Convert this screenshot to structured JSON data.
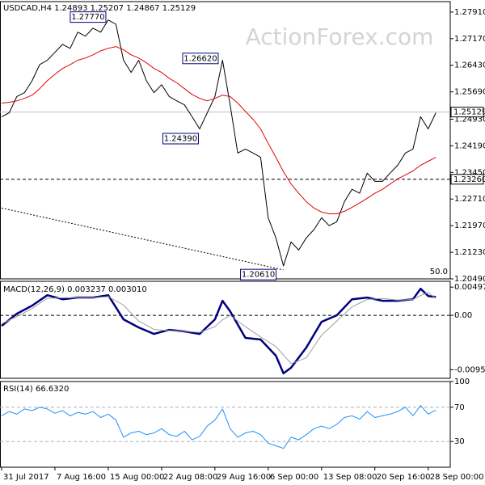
{
  "chart_data": [
    {
      "type": "line",
      "title": "USDCAD,H4 1.24893 1.25207 1.24867 1.25129",
      "watermark": "ActionForex.com",
      "corner_label": "50.0",
      "xlim": [
        0,
        59
      ],
      "ylim": [
        1.2049,
        1.282
      ],
      "yticks": [
        {
          "value": 1.2791,
          "label": "1.27910"
        },
        {
          "value": 1.2717,
          "label": "1.27170"
        },
        {
          "value": 1.2643,
          "label": "1.26430"
        },
        {
          "value": 1.2569,
          "label": "1.25690"
        },
        {
          "value": 1.2493,
          "label": "1.24930"
        },
        {
          "value": 1.2419,
          "label": "1.24190"
        },
        {
          "value": 1.2345,
          "label": "1.23450"
        },
        {
          "value": 1.2271,
          "label": "1.22710"
        },
        {
          "value": 1.2197,
          "label": "1.21970"
        },
        {
          "value": 1.2123,
          "label": "1.21230"
        },
        {
          "value": 1.2049,
          "label": "1.20490"
        }
      ],
      "x": [
        0,
        1,
        2,
        3,
        4,
        5,
        6,
        7,
        8,
        9,
        10,
        11,
        12,
        13,
        14,
        15,
        16,
        17,
        18,
        19,
        20,
        21,
        22,
        23,
        24,
        25,
        26,
        27,
        28,
        29,
        30,
        31,
        32,
        33,
        34,
        35,
        36,
        37,
        38,
        39,
        40,
        41,
        42,
        43,
        44,
        45,
        46,
        47,
        48,
        49,
        50,
        51,
        52,
        53,
        54,
        55,
        56,
        57
      ],
      "series": [
        {
          "color": "#000000",
          "style": "solid",
          "width": 1,
          "values": [
            1.25,
            1.2511,
            1.2556,
            1.2567,
            1.26,
            1.2645,
            1.2657,
            1.2679,
            1.2701,
            1.269,
            1.2735,
            1.2724,
            1.2746,
            1.2735,
            1.2769,
            1.2757,
            1.2657,
            1.2623,
            1.2657,
            1.26,
            1.2567,
            1.2589,
            1.2556,
            1.2544,
            1.2533,
            1.25,
            1.2466,
            1.2511,
            1.2556,
            1.2657,
            1.2533,
            1.2399,
            1.241,
            1.2399,
            1.2387,
            1.2219,
            1.2163,
            1.2085,
            1.2152,
            1.2129,
            1.2163,
            1.2186,
            1.2219,
            1.2197,
            1.2208,
            1.2264,
            1.2298,
            1.2287,
            1.2343,
            1.232,
            1.232,
            1.2343,
            1.2365,
            1.2399,
            1.241,
            1.25,
            1.2466,
            1.2511
          ]
        },
        {
          "color": "#e00000",
          "style": "solid",
          "width": 1,
          "values": [
            1.2538,
            1.254,
            1.2544,
            1.2551,
            1.256,
            1.2578,
            1.26,
            1.2618,
            1.2634,
            1.2645,
            1.2657,
            1.2663,
            1.2672,
            1.2683,
            1.269,
            1.2695,
            1.2686,
            1.2672,
            1.2663,
            1.265,
            1.2634,
            1.2623,
            1.2607,
            1.2594,
            1.2578,
            1.2562,
            1.2551,
            1.2544,
            1.2551,
            1.256,
            1.2556,
            1.2538,
            1.2515,
            1.2493,
            1.2466,
            1.2426,
            1.2387,
            1.2347,
            1.2313,
            1.2287,
            1.2264,
            1.2246,
            1.2235,
            1.223,
            1.223,
            1.2237,
            1.2248,
            1.226,
            1.2273,
            1.2287,
            1.2298,
            1.2313,
            1.2327,
            1.2338,
            1.2349,
            1.2365,
            1.2376,
            1.2387
          ]
        },
        {
          "color": "#000000",
          "style": "dotted",
          "width": 1,
          "x": [
            0,
            37
          ],
          "values": [
            1.2246,
            1.2074
          ]
        }
      ],
      "hlines": [
        {
          "value": 1.25129,
          "label": "1.25129",
          "color": "#c0c0c0",
          "style": "solid"
        },
        {
          "value": 1.2326,
          "label": "1.23260",
          "color": "#000000",
          "style": "dashed"
        }
      ],
      "annotations": [
        {
          "x": 11.35,
          "value": 1.2777,
          "label": "1.27770"
        },
        {
          "x": 26.1,
          "value": 1.2662,
          "label": "1.26620"
        },
        {
          "x": 23.5,
          "value": 1.2439,
          "label": "1.24390"
        },
        {
          "x": 33.7,
          "value": 1.2061,
          "label": "1.20610"
        }
      ]
    },
    {
      "type": "line",
      "title": "MACD(12,26,9) 0.003237 0.003010",
      "ylim": [
        -0.0111,
        0.006
      ],
      "yticks": [
        0.004974,
        {
          "value": 0,
          "label": "0.00"
        },
        -0.009591
      ],
      "x": [
        0,
        2,
        4,
        6,
        8,
        10,
        12,
        14,
        16,
        18,
        20,
        22,
        24,
        26,
        28,
        29,
        30,
        32,
        34,
        36,
        37,
        38,
        40,
        42,
        44,
        46,
        48,
        50,
        52,
        54,
        55,
        56,
        57
      ],
      "series": [
        {
          "color": "#00007f",
          "style": "solid",
          "width": 2.5,
          "values": [
            -0.00185,
            0.00028,
            0.00171,
            0.00355,
            0.00284,
            0.00313,
            0.00313,
            0.00355,
            -0.00071,
            -0.00213,
            -0.00327,
            -0.00256,
            -0.00284,
            -0.00327,
            -0.00071,
            0.00256,
            0.00071,
            -0.00398,
            -0.00426,
            -0.00711,
            -0.01023,
            -0.00924,
            -0.00568,
            -0.00114,
            0,
            0.00284,
            0.00313,
            0.00256,
            0.00256,
            0.00284,
            0.00469,
            0.00341,
            0.00324
          ]
        },
        {
          "color": "#a0a0a0",
          "style": "solid",
          "width": 1,
          "values": [
            -0.0015,
            -0.0002,
            0.0012,
            0.003,
            0.0031,
            0.0031,
            0.0031,
            0.0033,
            0.0018,
            -0.001,
            -0.0025,
            -0.0027,
            -0.0028,
            -0.003,
            -0.002,
            -0.0008,
            0,
            -0.002,
            -0.0038,
            -0.0055,
            -0.007,
            -0.0085,
            -0.0075,
            -0.0035,
            -0.001,
            0.0015,
            0.0028,
            0.003,
            0.0027,
            0.0028,
            0.0035,
            0.004,
            0.003
          ]
        }
      ],
      "hlines": [
        {
          "value": 0,
          "color": "#000000",
          "style": "dashed"
        }
      ]
    },
    {
      "type": "line",
      "title": "RSI(14) 66.6320",
      "ylim": [
        0,
        100
      ],
      "yticks": [
        100,
        70,
        30
      ],
      "xticks": [
        {
          "value": 0,
          "label": "31 Jul 2017"
        },
        {
          "value": 7,
          "label": "7 Aug 16:00"
        },
        {
          "value": 14,
          "label": "15 Aug 00:00"
        },
        {
          "value": 21,
          "label": "22 Aug 08:00"
        },
        {
          "value": 28,
          "label": "29 Aug 16:00"
        },
        {
          "value": 35,
          "label": "6 Sep 00:00"
        },
        {
          "value": 42,
          "label": "13 Sep 08:00"
        },
        {
          "value": 49,
          "label": "20 Sep 16:00"
        },
        {
          "value": 56,
          "label": "28 Sep 00:00"
        }
      ],
      "x": [
        0,
        1,
        2,
        3,
        4,
        5,
        6,
        7,
        8,
        9,
        10,
        11,
        12,
        13,
        14,
        15,
        16,
        17,
        18,
        19,
        20,
        21,
        22,
        23,
        24,
        25,
        26,
        27,
        28,
        29,
        30,
        31,
        32,
        33,
        34,
        35,
        36,
        37,
        38,
        39,
        40,
        41,
        42,
        43,
        44,
        45,
        46,
        47,
        48,
        49,
        50,
        51,
        52,
        53,
        54,
        55,
        56,
        57
      ],
      "series": [
        {
          "color": "#1e90ff",
          "style": "solid",
          "width": 1,
          "values": [
            60,
            65,
            62,
            68,
            66,
            70,
            68,
            63,
            66,
            60,
            64,
            62,
            65,
            58,
            62,
            55,
            35,
            40,
            42,
            38,
            40,
            45,
            38,
            36,
            42,
            32,
            36,
            48,
            55,
            68,
            45,
            35,
            40,
            42,
            38,
            28,
            25,
            22,
            35,
            32,
            38,
            45,
            48,
            45,
            50,
            58,
            60,
            56,
            65,
            58,
            60,
            62,
            65,
            70,
            60,
            72,
            62,
            66.632
          ]
        }
      ],
      "hlines": [
        {
          "value": 70,
          "color": "#b0b0b0",
          "style": "dashed"
        },
        {
          "value": 30,
          "color": "#b0b0b0",
          "style": "dashed"
        }
      ]
    }
  ]
}
